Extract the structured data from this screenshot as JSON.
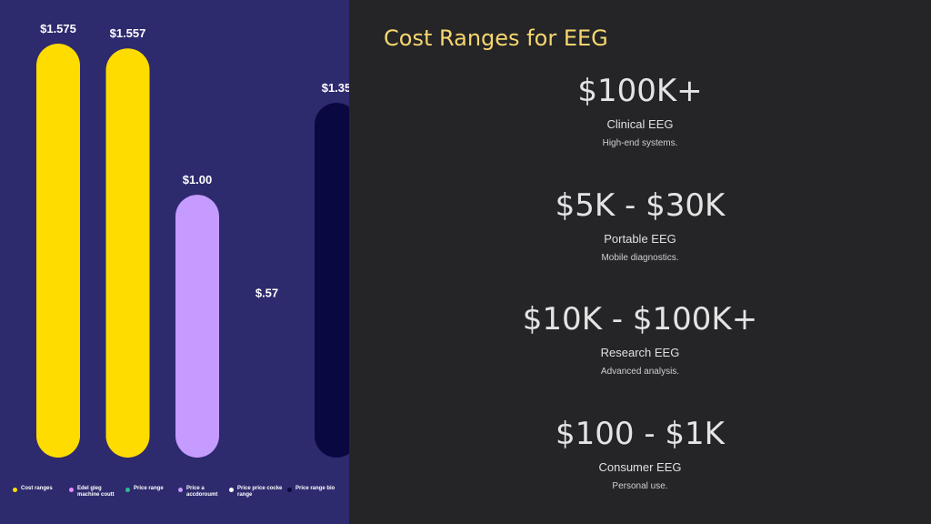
{
  "chart_data": {
    "type": "bar",
    "data_labels": [
      "$1.575",
      "$1.557",
      "$1.00",
      "$.57",
      "$1.35"
    ],
    "values": [
      1.575,
      1.557,
      1.0,
      0.57,
      1.35
    ],
    "bar_colors": [
      "#ffdc00",
      "#ffdc00",
      "#c59bff",
      null,
      "#0a0840"
    ],
    "ylim": [
      0,
      1.75
    ],
    "grid": false,
    "legend_position": "bottom",
    "legend": [
      {
        "label": "Cost ranges",
        "color": "#ffdc00"
      },
      {
        "label": "Edel gieg machine coutt",
        "color": "#e38cff"
      },
      {
        "label": "Price range",
        "color": "#2bbd8e"
      },
      {
        "label": "Price a accdoroumt",
        "color": "#c59bff"
      },
      {
        "label": "Price price cocke range",
        "color": "#ffffff"
      },
      {
        "label": "Price range bio",
        "color": "#0a0840"
      }
    ]
  },
  "slide": {
    "title": "Cost Ranges for EEG",
    "tiers": [
      {
        "price": "$100K+",
        "name": "Clinical EEG",
        "desc": "High-end systems."
      },
      {
        "price": "$5K - $30K",
        "name": "Portable EEG",
        "desc": "Mobile diagnostics."
      },
      {
        "price": "$10K - $100K+",
        "name": "Research EEG",
        "desc": "Advanced analysis."
      },
      {
        "price": "$100 - $1K",
        "name": "Consumer EEG",
        "desc": "Personal use."
      }
    ]
  }
}
